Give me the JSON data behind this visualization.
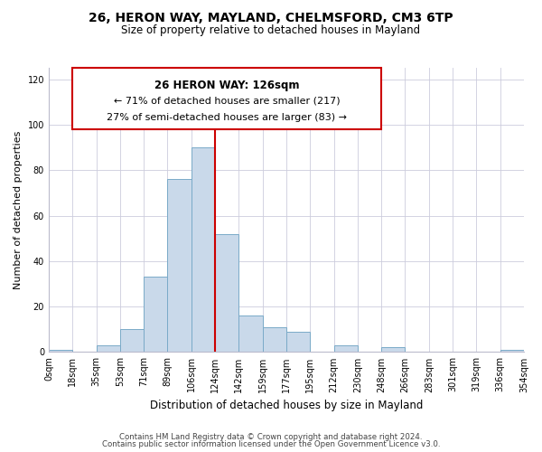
{
  "title": "26, HERON WAY, MAYLAND, CHELMSFORD, CM3 6TP",
  "subtitle": "Size of property relative to detached houses in Mayland",
  "xlabel": "Distribution of detached houses by size in Mayland",
  "ylabel": "Number of detached properties",
  "bar_color": "#c9d9ea",
  "bar_edge_color": "#7aaac8",
  "bin_labels": [
    "0sqm",
    "18sqm",
    "35sqm",
    "53sqm",
    "71sqm",
    "89sqm",
    "106sqm",
    "124sqm",
    "142sqm",
    "159sqm",
    "177sqm",
    "195sqm",
    "212sqm",
    "230sqm",
    "248sqm",
    "266sqm",
    "283sqm",
    "301sqm",
    "319sqm",
    "336sqm",
    "354sqm"
  ],
  "bar_heights": [
    1,
    0,
    3,
    10,
    33,
    76,
    90,
    52,
    16,
    11,
    9,
    0,
    3,
    0,
    2,
    0,
    0,
    0,
    0,
    1
  ],
  "vline_x_index": 7,
  "vline_color": "#cc0000",
  "ylim": [
    0,
    125
  ],
  "yticks": [
    0,
    20,
    40,
    60,
    80,
    100,
    120
  ],
  "annotation_title": "26 HERON WAY: 126sqm",
  "annotation_line1": "← 71% of detached houses are smaller (217)",
  "annotation_line2": "27% of semi-detached houses are larger (83) →",
  "footer_line1": "Contains HM Land Registry data © Crown copyright and database right 2024.",
  "footer_line2": "Contains public sector information licensed under the Open Government Licence v3.0.",
  "background_color": "#ffffff",
  "grid_color": "#ccccdd"
}
